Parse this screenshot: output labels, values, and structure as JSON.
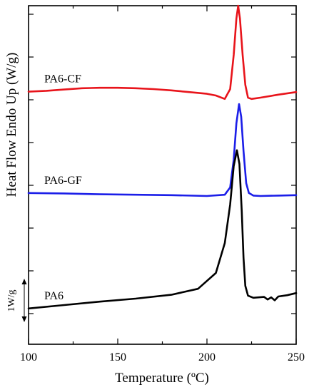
{
  "chart_data": {
    "type": "line",
    "title": "",
    "xlabel": "Temperature (ºC)",
    "ylabel": "Heat Flow Endo Up (W/g)",
    "xlim": [
      100,
      250
    ],
    "x_ticks": [
      100,
      150,
      200,
      250
    ],
    "x_tick_labels": [
      "100",
      "150",
      "200",
      "250"
    ],
    "y_tick_labels_shown": false,
    "grid": false,
    "scale_bar": {
      "label": "1W/g",
      "value_wg": 1
    },
    "series": [
      {
        "name": "PA6-CF",
        "color": "#e8141b",
        "points": [
          [
            100,
            5.19
          ],
          [
            110,
            5.21
          ],
          [
            120,
            5.24
          ],
          [
            130,
            5.27
          ],
          [
            140,
            5.28
          ],
          [
            150,
            5.28
          ],
          [
            160,
            5.27
          ],
          [
            170,
            5.25
          ],
          [
            180,
            5.22
          ],
          [
            190,
            5.18
          ],
          [
            200,
            5.14
          ],
          [
            205,
            5.1
          ],
          [
            210,
            5.02
          ],
          [
            213,
            5.25
          ],
          [
            215,
            6.05
          ],
          [
            216.5,
            6.9
          ],
          [
            217.5,
            7.2
          ],
          [
            218.5,
            6.9
          ],
          [
            220,
            6.05
          ],
          [
            221.5,
            5.35
          ],
          [
            223,
            5.05
          ],
          [
            225,
            5.02
          ],
          [
            230,
            5.05
          ],
          [
            240,
            5.12
          ],
          [
            250,
            5.18
          ]
        ]
      },
      {
        "name": "PA6-GF",
        "color": "#1b1ee8",
        "points": [
          [
            100,
            2.82
          ],
          [
            120,
            2.81
          ],
          [
            140,
            2.79
          ],
          [
            160,
            2.78
          ],
          [
            180,
            2.77
          ],
          [
            200,
            2.75
          ],
          [
            210,
            2.78
          ],
          [
            213,
            2.95
          ],
          [
            215,
            3.6
          ],
          [
            216.5,
            4.45
          ],
          [
            218,
            4.9
          ],
          [
            219.2,
            4.6
          ],
          [
            220.5,
            3.8
          ],
          [
            222,
            3.05
          ],
          [
            223.5,
            2.82
          ],
          [
            226,
            2.76
          ],
          [
            230,
            2.75
          ],
          [
            240,
            2.76
          ],
          [
            250,
            2.77
          ]
        ]
      },
      {
        "name": "PA6",
        "color": "#000000",
        "points": [
          [
            100,
            0.12
          ],
          [
            120,
            0.2
          ],
          [
            140,
            0.28
          ],
          [
            160,
            0.35
          ],
          [
            180,
            0.44
          ],
          [
            195,
            0.58
          ],
          [
            205,
            0.95
          ],
          [
            210,
            1.65
          ],
          [
            213,
            2.55
          ],
          [
            215,
            3.45
          ],
          [
            216.8,
            3.82
          ],
          [
            218.2,
            3.5
          ],
          [
            219.5,
            2.4
          ],
          [
            220.5,
            1.3
          ],
          [
            221.5,
            0.65
          ],
          [
            223,
            0.42
          ],
          [
            226,
            0.37
          ],
          [
            232,
            0.39
          ],
          [
            234,
            0.33
          ],
          [
            236,
            0.38
          ],
          [
            238,
            0.31
          ],
          [
            240,
            0.4
          ],
          [
            245,
            0.43
          ],
          [
            250,
            0.48
          ]
        ]
      }
    ]
  }
}
